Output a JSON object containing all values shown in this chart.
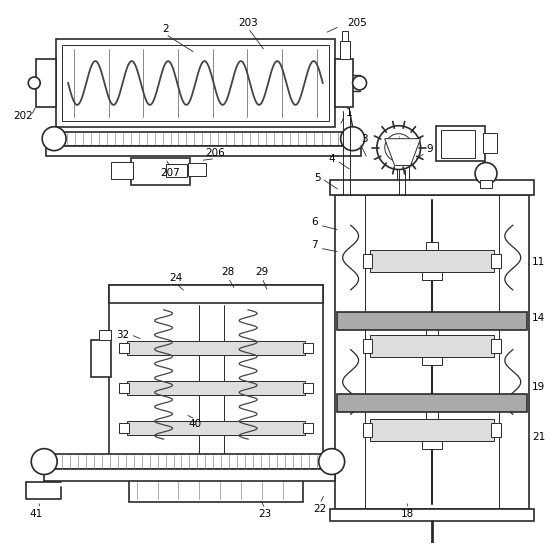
{
  "bg_color": "#ffffff",
  "line_color": "#2a2a2a",
  "gray_fill": "#aaaaaa",
  "light_gray": "#dddddd",
  "mid_gray": "#888888",
  "dark_gray": "#444444"
}
